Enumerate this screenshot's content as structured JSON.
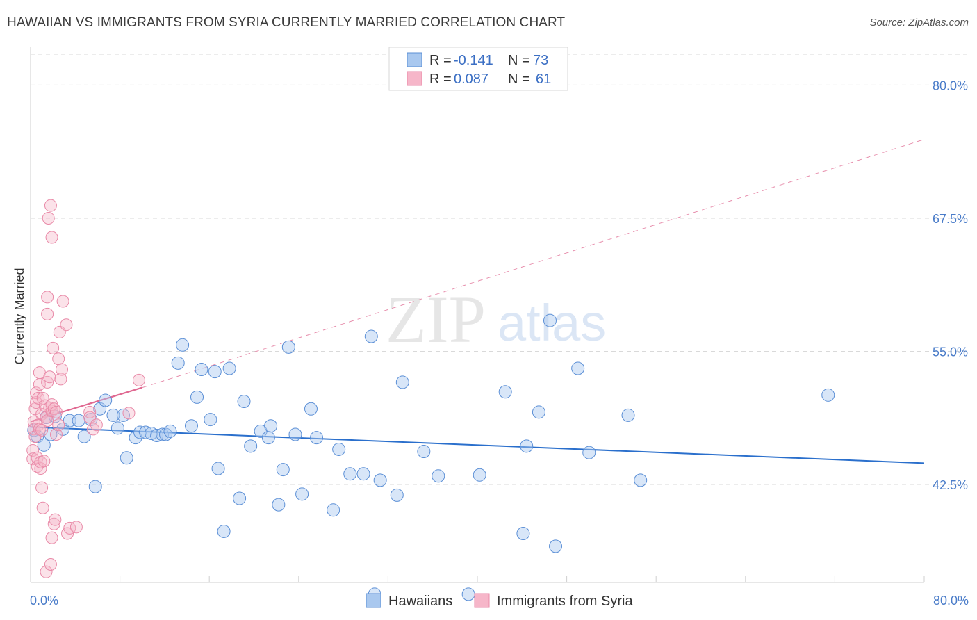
{
  "title": "HAWAIIAN VS IMMIGRANTS FROM SYRIA CURRENTLY MARRIED CORRELATION CHART",
  "source": "Source: ZipAtlas.com",
  "watermark": {
    "zip": "ZIP",
    "atlas": "atlas"
  },
  "colors": {
    "blue_fill": "#a9c8ef",
    "blue_stroke": "#5b8fd6",
    "blue_line": "#2a6fcc",
    "pink_fill": "#f6b6c9",
    "pink_stroke": "#e98aa8",
    "pink_line": "#e06a92",
    "grid": "#d9d9d9",
    "tick_text": "#4a7cc9"
  },
  "legend": {
    "rows": [
      {
        "r_label": "R =",
        "r_value": "-0.141",
        "n_label": "N =",
        "n_value": "73"
      },
      {
        "r_label": "R =",
        "r_value": "0.087",
        "n_label": "N =",
        "n_value": "61"
      }
    ]
  },
  "bottom_legend": [
    "Hawaiians",
    "Immigrants from Syria"
  ],
  "chart_data": {
    "type": "scatter",
    "ylabel": "Currently Married",
    "xlim": [
      0,
      80
    ],
    "ylim": [
      33.3,
      82.9
    ],
    "x_tick_labels": [
      "0.0%",
      "80.0%"
    ],
    "y_ticks": [
      42.5,
      55.0,
      67.5,
      80.0
    ],
    "y_tick_labels": [
      "42.5%",
      "55.0%",
      "67.5%",
      "80.0%"
    ],
    "grid": true,
    "legend_position": "top-center",
    "series": [
      {
        "name": "Hawaiians",
        "trend": {
          "x0": 0,
          "y0": 47.9,
          "x1": 80,
          "y1": 44.5
        },
        "points": [
          [
            0.3,
            47.6
          ],
          [
            0.6,
            47.0
          ],
          [
            1.2,
            46.2
          ],
          [
            1.4,
            48.8
          ],
          [
            1.8,
            47.2
          ],
          [
            2.2,
            48.9
          ],
          [
            2.9,
            47.7
          ],
          [
            3.5,
            48.5
          ],
          [
            4.3,
            48.5
          ],
          [
            4.8,
            47.0
          ],
          [
            5.4,
            48.6
          ],
          [
            5.8,
            42.3
          ],
          [
            6.2,
            49.6
          ],
          [
            6.7,
            50.4
          ],
          [
            7.4,
            49.0
          ],
          [
            7.8,
            47.8
          ],
          [
            8.3,
            49.0
          ],
          [
            8.6,
            45.0
          ],
          [
            9.4,
            46.9
          ],
          [
            9.8,
            47.4
          ],
          [
            10.3,
            47.4
          ],
          [
            10.8,
            47.3
          ],
          [
            11.3,
            47.1
          ],
          [
            11.8,
            47.2
          ],
          [
            12.1,
            47.2
          ],
          [
            12.5,
            47.5
          ],
          [
            13.2,
            53.9
          ],
          [
            13.6,
            55.6
          ],
          [
            14.4,
            48.0
          ],
          [
            14.9,
            50.7
          ],
          [
            15.3,
            53.3
          ],
          [
            16.1,
            48.6
          ],
          [
            16.5,
            53.1
          ],
          [
            16.8,
            44.0
          ],
          [
            17.3,
            38.1
          ],
          [
            17.8,
            53.4
          ],
          [
            18.7,
            41.2
          ],
          [
            19.1,
            50.3
          ],
          [
            19.7,
            46.1
          ],
          [
            20.6,
            47.5
          ],
          [
            21.3,
            46.9
          ],
          [
            21.5,
            48.0
          ],
          [
            22.2,
            40.6
          ],
          [
            22.6,
            43.9
          ],
          [
            23.1,
            55.4
          ],
          [
            23.7,
            47.2
          ],
          [
            24.3,
            41.6
          ],
          [
            25.1,
            49.6
          ],
          [
            25.6,
            46.9
          ],
          [
            27.1,
            40.1
          ],
          [
            27.6,
            45.8
          ],
          [
            28.6,
            43.5
          ],
          [
            29.8,
            43.5
          ],
          [
            30.5,
            56.4
          ],
          [
            30.8,
            32.2
          ],
          [
            31.3,
            42.9
          ],
          [
            32.8,
            41.5
          ],
          [
            33.3,
            52.1
          ],
          [
            35.2,
            45.6
          ],
          [
            36.5,
            43.3
          ],
          [
            39.2,
            32.2
          ],
          [
            40.2,
            43.4
          ],
          [
            42.5,
            51.2
          ],
          [
            44.1,
            37.9
          ],
          [
            44.4,
            46.1
          ],
          [
            45.5,
            49.3
          ],
          [
            46.5,
            57.9
          ],
          [
            47.0,
            36.7
          ],
          [
            49.0,
            53.4
          ],
          [
            50.0,
            45.5
          ],
          [
            53.5,
            49.0
          ],
          [
            54.6,
            42.9
          ],
          [
            71.4,
            50.9
          ]
        ]
      },
      {
        "name": "Immigrants from Syria",
        "trend": {
          "x0": 0,
          "y0": 48.4,
          "x1": 10,
          "y1": 51.6
        },
        "trend_extended": {
          "x0": 10,
          "y0": 51.6,
          "x1": 80,
          "y1": 74.9
        },
        "points": [
          [
            0.2,
            45.7
          ],
          [
            0.2,
            44.9
          ],
          [
            0.3,
            47.7
          ],
          [
            0.3,
            48.4
          ],
          [
            0.4,
            49.6
          ],
          [
            0.4,
            47.0
          ],
          [
            0.5,
            50.2
          ],
          [
            0.5,
            51.1
          ],
          [
            0.6,
            44.2
          ],
          [
            0.6,
            45.0
          ],
          [
            0.7,
            50.6
          ],
          [
            0.7,
            48.1
          ],
          [
            0.8,
            51.9
          ],
          [
            0.8,
            53.0
          ],
          [
            0.8,
            47.7
          ],
          [
            0.9,
            44.0
          ],
          [
            0.9,
            44.6
          ],
          [
            1.0,
            49.1
          ],
          [
            1.0,
            47.6
          ],
          [
            1.0,
            42.2
          ],
          [
            1.1,
            40.3
          ],
          [
            1.1,
            50.6
          ],
          [
            1.2,
            44.7
          ],
          [
            1.3,
            49.9
          ],
          [
            1.4,
            34.3
          ],
          [
            1.4,
            48.8
          ],
          [
            1.5,
            48.5
          ],
          [
            1.5,
            52.1
          ],
          [
            1.5,
            58.5
          ],
          [
            1.5,
            60.1
          ],
          [
            1.6,
            67.5
          ],
          [
            1.7,
            49.7
          ],
          [
            1.7,
            52.6
          ],
          [
            1.8,
            68.7
          ],
          [
            1.8,
            35.0
          ],
          [
            1.9,
            65.7
          ],
          [
            1.9,
            37.5
          ],
          [
            1.9,
            49.4
          ],
          [
            1.9,
            50.0
          ],
          [
            2.0,
            55.3
          ],
          [
            2.1,
            38.8
          ],
          [
            2.1,
            49.6
          ],
          [
            2.2,
            39.2
          ],
          [
            2.3,
            47.2
          ],
          [
            2.3,
            49.3
          ],
          [
            2.5,
            54.3
          ],
          [
            2.5,
            48.1
          ],
          [
            2.6,
            56.8
          ],
          [
            2.7,
            52.4
          ],
          [
            2.8,
            53.3
          ],
          [
            2.9,
            59.7
          ],
          [
            3.2,
            57.5
          ],
          [
            3.3,
            37.9
          ],
          [
            3.5,
            38.4
          ],
          [
            4.1,
            38.5
          ],
          [
            5.3,
            49.3
          ],
          [
            5.3,
            48.8
          ],
          [
            5.6,
            47.7
          ],
          [
            5.9,
            48.1
          ],
          [
            8.8,
            49.2
          ],
          [
            9.7,
            52.3
          ]
        ]
      }
    ]
  }
}
